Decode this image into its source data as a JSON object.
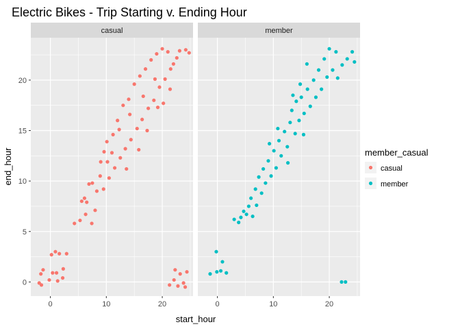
{
  "chart_data": {
    "type": "scatter",
    "title": "Electric Bikes - Trip Starting v. Ending Hour",
    "xlabel": "start_hour",
    "ylabel": "end_hour",
    "xlim": [
      -3.5,
      25.5
    ],
    "ylim": [
      -1.4,
      24.2
    ],
    "x_ticks": [
      0,
      10,
      20
    ],
    "y_ticks": [
      0,
      5,
      10,
      15,
      20
    ],
    "grid": true,
    "legend": {
      "title": "member_casual",
      "position": "right",
      "entries": [
        {
          "label": "casual",
          "color": "#F8766D"
        },
        {
          "label": "member",
          "color": "#00BFC4"
        }
      ]
    },
    "facets": [
      {
        "label": "casual",
        "color": "#F8766D",
        "points": [
          [
            -2,
            -0.1
          ],
          [
            -1.7,
            0.8
          ],
          [
            -1.3,
            1.2
          ],
          [
            -1.6,
            -0.3
          ],
          [
            -0.2,
            0.2
          ],
          [
            0.2,
            2.7
          ],
          [
            0.9,
            3.0
          ],
          [
            0.4,
            0.9
          ],
          [
            1.1,
            0.9
          ],
          [
            1.6,
            2.8
          ],
          [
            1.3,
            0.1
          ],
          [
            2.2,
            0.4
          ],
          [
            2.3,
            1.3
          ],
          [
            2.9,
            2.8
          ],
          [
            4.3,
            5.8
          ],
          [
            5.3,
            6.1
          ],
          [
            5.6,
            8.0
          ],
          [
            6.1,
            8.3
          ],
          [
            6.5,
            7.9
          ],
          [
            6.3,
            6.7
          ],
          [
            6.9,
            9.7
          ],
          [
            7.4,
            5.8
          ],
          [
            7.5,
            9.8
          ],
          [
            8.0,
            7.1
          ],
          [
            8.3,
            9.0
          ],
          [
            8.9,
            10.5
          ],
          [
            9.0,
            11.9
          ],
          [
            9.6,
            12.9
          ],
          [
            9.5,
            9.2
          ],
          [
            10.1,
            13.9
          ],
          [
            10.5,
            10.3
          ],
          [
            11.2,
            14.6
          ],
          [
            11.5,
            11.3
          ],
          [
            12.0,
            16.0
          ],
          [
            12.5,
            12.3
          ],
          [
            13.0,
            17.5
          ],
          [
            13.4,
            13.2
          ],
          [
            14.0,
            18.1
          ],
          [
            14.4,
            14.1
          ],
          [
            15.0,
            19.6
          ],
          [
            15.5,
            15.2
          ],
          [
            16.0,
            20.4
          ],
          [
            16.4,
            16.1
          ],
          [
            17.0,
            21.1
          ],
          [
            17.5,
            17.2
          ],
          [
            18.0,
            22.0
          ],
          [
            18.5,
            18.0
          ],
          [
            19.0,
            22.6
          ],
          [
            19.5,
            19.3
          ],
          [
            20.0,
            23.1
          ],
          [
            20.5,
            20.1
          ],
          [
            21.0,
            22.8
          ],
          [
            21.5,
            21.1
          ],
          [
            22.0,
            21.6
          ],
          [
            22.6,
            22.2
          ],
          [
            23.1,
            22.9
          ],
          [
            24.2,
            23.0
          ],
          [
            24.8,
            22.7
          ],
          [
            12.3,
            15.1
          ],
          [
            14.2,
            16.6
          ],
          [
            16.6,
            18.4
          ],
          [
            18.7,
            20.1
          ],
          [
            13.6,
            11.2
          ],
          [
            15.8,
            13.1
          ],
          [
            17.3,
            15.0
          ],
          [
            19.2,
            17.3
          ],
          [
            11.0,
            12.8
          ],
          [
            10.2,
            11.9
          ],
          [
            21.4,
            19.1
          ],
          [
            20.2,
            17.7
          ],
          [
            22.1,
            0.2
          ],
          [
            22.8,
            -0.4
          ],
          [
            23.2,
            0.8
          ],
          [
            23.8,
            -0.1
          ],
          [
            24.4,
            1.0
          ],
          [
            21.3,
            -0.3
          ],
          [
            24.1,
            -0.5
          ],
          [
            22.3,
            1.2
          ]
        ]
      },
      {
        "label": "member",
        "color": "#00BFC4",
        "points": [
          [
            -1.3,
            0.8
          ],
          [
            -0.2,
            3.0
          ],
          [
            -0.1,
            1.0
          ],
          [
            0.6,
            1.1
          ],
          [
            0.9,
            2.0
          ],
          [
            1.6,
            0.9
          ],
          [
            3.0,
            6.2
          ],
          [
            3.8,
            5.9
          ],
          [
            4.2,
            6.4
          ],
          [
            4.7,
            7.0
          ],
          [
            5.2,
            6.7
          ],
          [
            5.6,
            7.5
          ],
          [
            6.3,
            6.5
          ],
          [
            6.0,
            8.3
          ],
          [
            6.8,
            9.2
          ],
          [
            7.0,
            7.6
          ],
          [
            7.4,
            10.4
          ],
          [
            7.9,
            8.8
          ],
          [
            8.2,
            11.2
          ],
          [
            8.6,
            9.8
          ],
          [
            9.1,
            12.0
          ],
          [
            9.6,
            10.5
          ],
          [
            10.1,
            13.0
          ],
          [
            10.5,
            11.3
          ],
          [
            11.0,
            14.0
          ],
          [
            11.4,
            12.5
          ],
          [
            12.0,
            14.9
          ],
          [
            12.5,
            13.4
          ],
          [
            13.0,
            15.8
          ],
          [
            13.3,
            17.0
          ],
          [
            13.9,
            14.7
          ],
          [
            14.1,
            17.9
          ],
          [
            14.6,
            16.0
          ],
          [
            15.0,
            18.3
          ],
          [
            15.5,
            16.7
          ],
          [
            16.1,
            19.1
          ],
          [
            16.6,
            17.4
          ],
          [
            17.2,
            20.0
          ],
          [
            17.6,
            18.3
          ],
          [
            18.1,
            21.0
          ],
          [
            18.6,
            19.1
          ],
          [
            19.1,
            22.1
          ],
          [
            19.6,
            20.3
          ],
          [
            20.0,
            23.1
          ],
          [
            20.6,
            21.0
          ],
          [
            21.2,
            22.8
          ],
          [
            21.5,
            20.2
          ],
          [
            22.3,
            21.5
          ],
          [
            23.2,
            22.1
          ],
          [
            24.1,
            22.8
          ],
          [
            24.5,
            21.8
          ],
          [
            13.5,
            18.5
          ],
          [
            14.8,
            19.6
          ],
          [
            16.0,
            21.6
          ],
          [
            9.3,
            13.7
          ],
          [
            10.8,
            15.2
          ],
          [
            12.6,
            11.8
          ],
          [
            15.4,
            14.6
          ],
          [
            22.2,
            0.0
          ],
          [
            22.9,
            0.0
          ]
        ]
      }
    ]
  }
}
